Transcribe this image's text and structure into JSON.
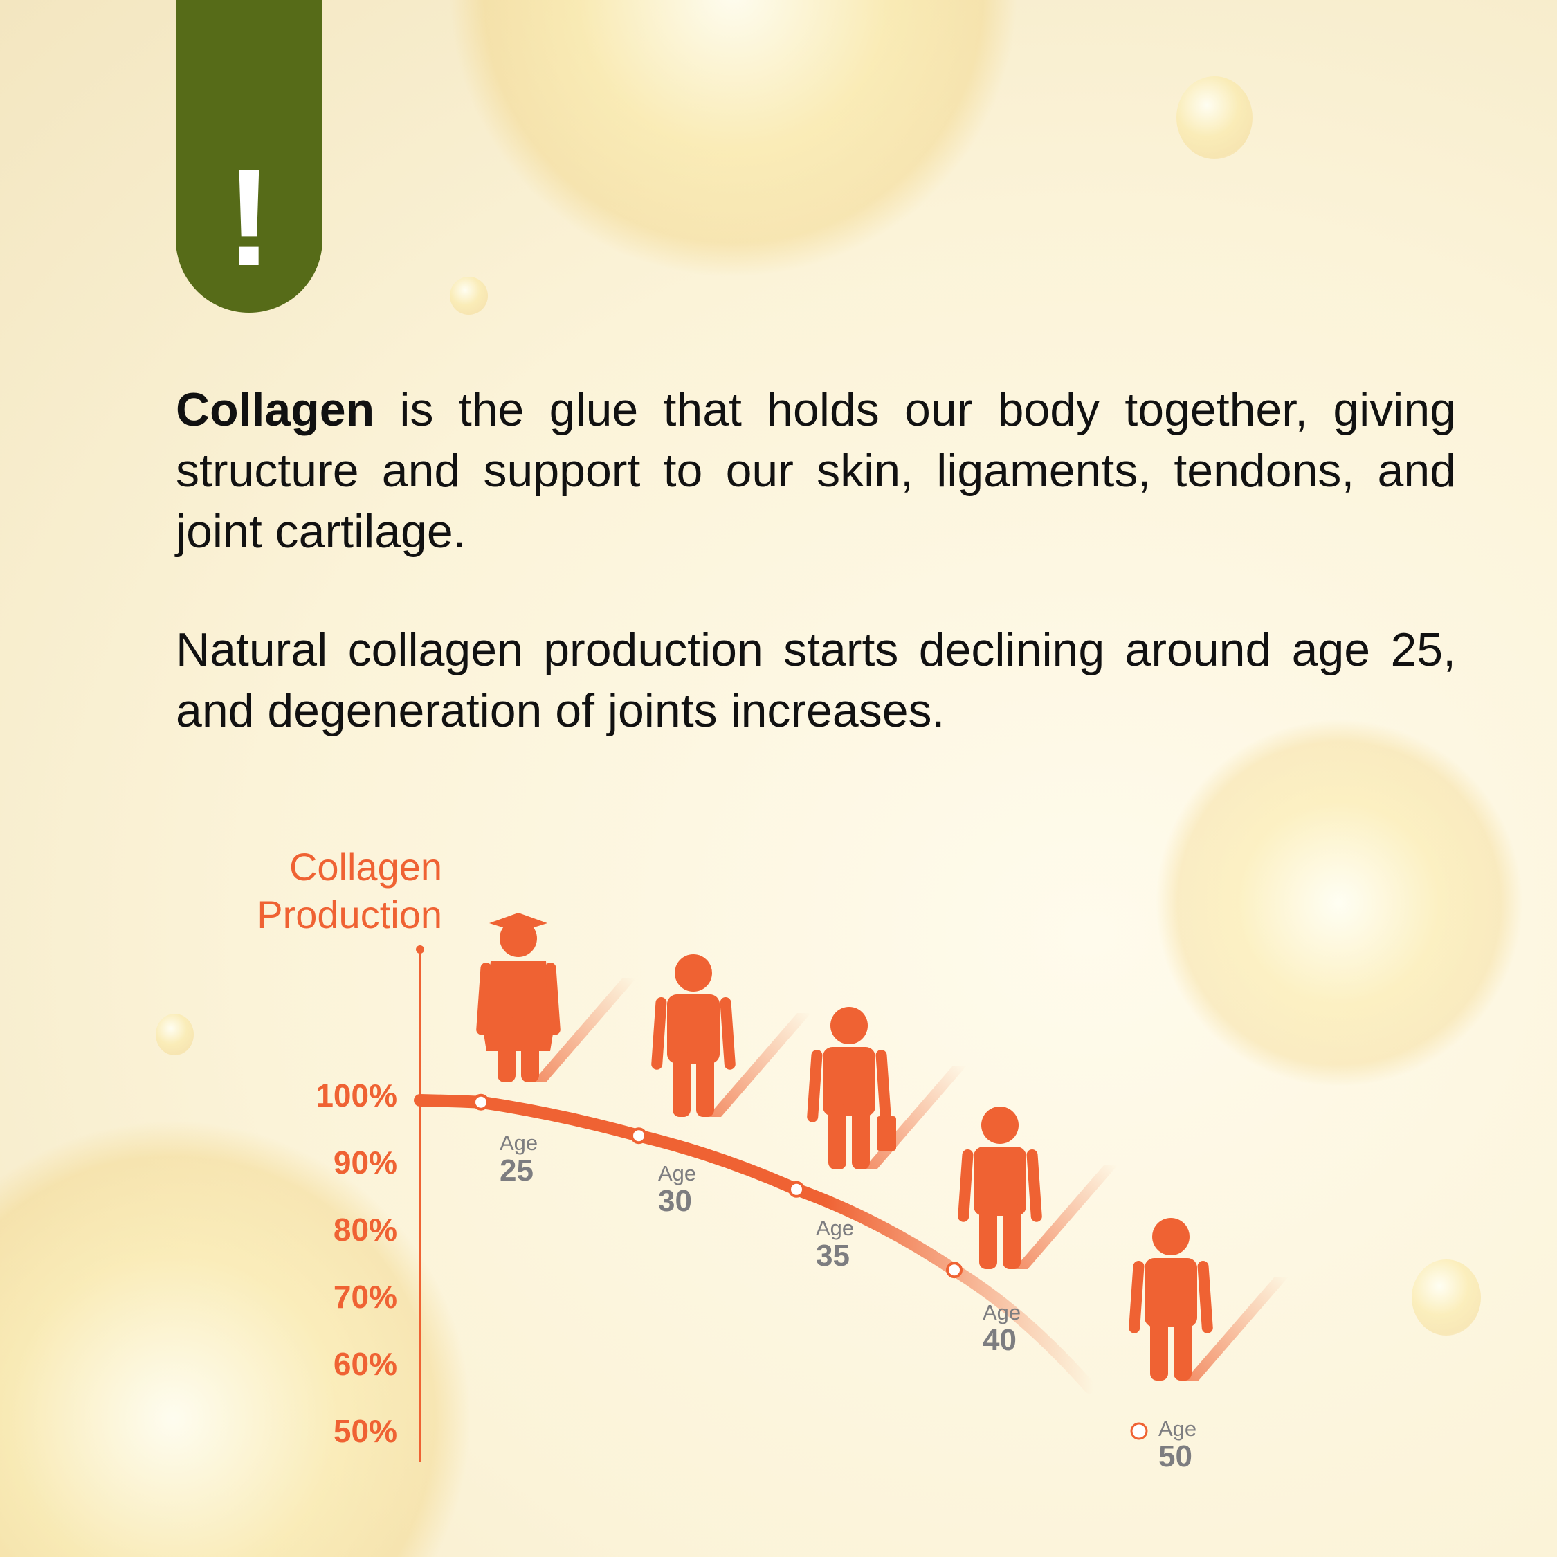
{
  "alert_icon": "exclamation-icon",
  "alert_symbol": "!",
  "intro": {
    "bold": "Collagen",
    "rest": " is the glue that holds our body together, giving structure and support to our skin, ligaments, tendons, and joint cartilage."
  },
  "note": "Natural collagen production starts declining around age 25, and degeneration of joints increases.",
  "colors": {
    "accent": "#ef6233",
    "tab": "#566b18",
    "age_text": "#7d7d80"
  },
  "chart_data": {
    "type": "line",
    "ylabel_line1": "Collagen",
    "ylabel_line2": "Production",
    "y_ticks": [
      "100%",
      "90%",
      "80%",
      "70%",
      "60%",
      "50%"
    ],
    "ylim": [
      50,
      100
    ],
    "points": [
      {
        "age_label": "Age",
        "age": "25",
        "value": 99,
        "figure": "graduate-icon"
      },
      {
        "age_label": "Age",
        "age": "30",
        "value": 94,
        "figure": "person-casual-icon"
      },
      {
        "age_label": "Age",
        "age": "35",
        "value": 86,
        "figure": "businessman-briefcase-icon"
      },
      {
        "age_label": "Age",
        "age": "40",
        "value": 74,
        "figure": "businessman-suit-icon"
      },
      {
        "age_label": "Age",
        "age": "50",
        "value": 50,
        "figure": "person-older-icon"
      }
    ]
  }
}
